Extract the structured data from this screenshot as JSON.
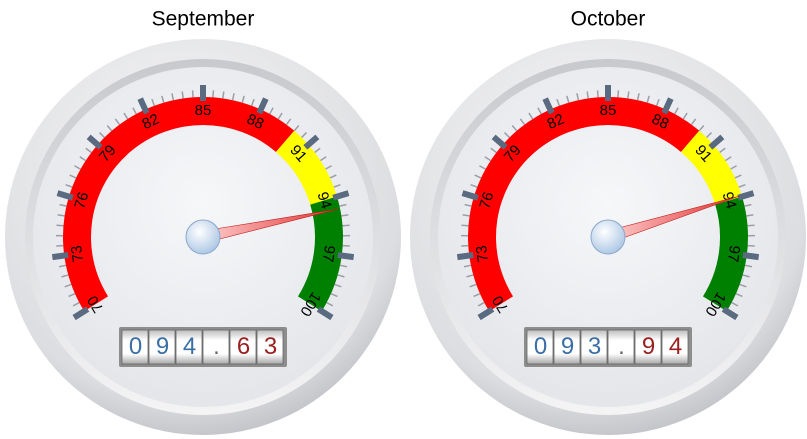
{
  "chart_data": [
    {
      "type": "gauge",
      "title": "September",
      "values": [
        94.63
      ],
      "value_labels": [
        "094.63"
      ],
      "ylim": [
        70,
        100
      ],
      "yticks": [
        70,
        73,
        76,
        79,
        82,
        85,
        88,
        91,
        94,
        97,
        100
      ],
      "bands": [
        {
          "from": 70,
          "to": 90,
          "color": "#ff0000"
        },
        {
          "from": 90,
          "to": 94,
          "color": "#ffff00"
        },
        {
          "from": 94,
          "to": 100,
          "color": "#008000"
        }
      ]
    },
    {
      "type": "gauge",
      "title": "October",
      "values": [
        93.94
      ],
      "value_labels": [
        "093.94"
      ],
      "ylim": [
        70,
        100
      ],
      "yticks": [
        70,
        73,
        76,
        79,
        82,
        85,
        88,
        91,
        94,
        97,
        100
      ],
      "bands": [
        {
          "from": 70,
          "to": 90,
          "color": "#ff0000"
        },
        {
          "from": 90,
          "to": 94,
          "color": "#ffff00"
        },
        {
          "from": 94,
          "to": 100,
          "color": "#008000"
        }
      ]
    }
  ]
}
